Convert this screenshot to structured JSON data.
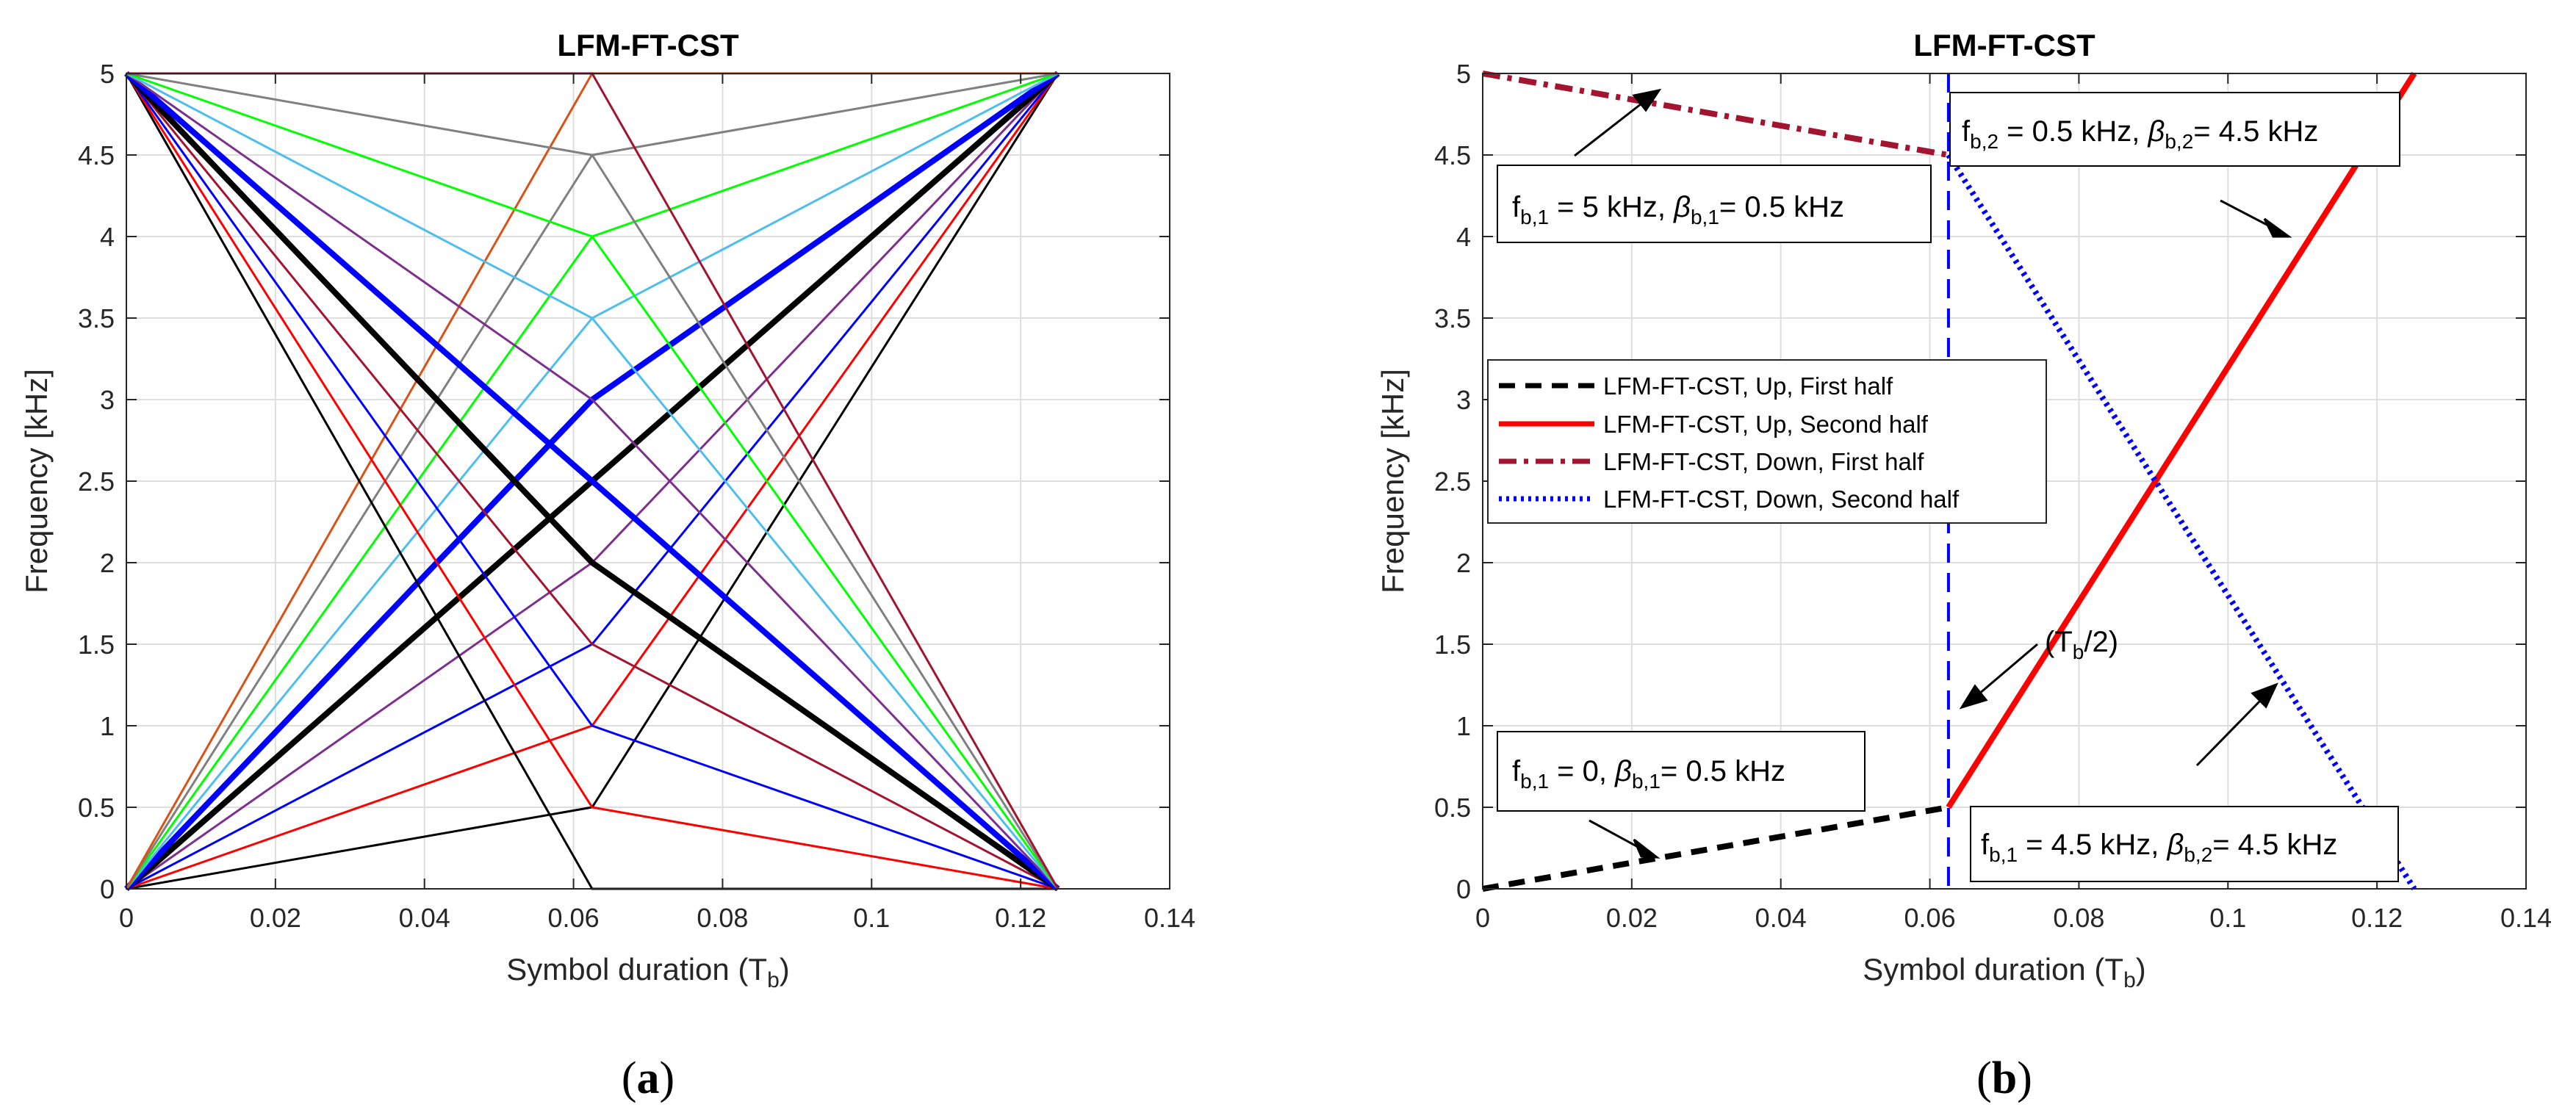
{
  "chart_data": [
    {
      "type": "line",
      "panel_label": "(a)",
      "title": "LFM-FT-CST",
      "xlabel": "Symbol duration (T",
      "xlabel_sub": "b",
      "xlabel_tail": ")",
      "ylabel": "Frequency [kHz]",
      "xlim": [
        0,
        0.14
      ],
      "ylim": [
        0,
        5
      ],
      "xticks": [
        0,
        0.02,
        0.04,
        0.06,
        0.08,
        0.1,
        0.12,
        0.14
      ],
      "xtick_labels": [
        "0",
        "0.02",
        "0.04",
        "0.06",
        "0.08",
        "0.1",
        "0.12",
        "0.14"
      ],
      "yticks": [
        0,
        0.5,
        1,
        1.5,
        2,
        2.5,
        3,
        3.5,
        4,
        4.5,
        5
      ],
      "ytick_labels": [
        "0",
        "0.5",
        "1",
        "1.5",
        "2",
        "2.5",
        "3",
        "3.5",
        "4",
        "4.5",
        "5"
      ],
      "grid": true,
      "series": [
        {
          "color": "#000000",
          "width": 1,
          "x": [
            0,
            0.0625,
            0.125
          ],
          "y": [
            0,
            0.5,
            5
          ]
        },
        {
          "color": "#ff0000",
          "width": 1,
          "x": [
            0,
            0.0625,
            0.125
          ],
          "y": [
            0,
            1,
            5
          ]
        },
        {
          "color": "#0000ff",
          "width": 1,
          "x": [
            0,
            0.0625,
            0.125
          ],
          "y": [
            0,
            1.5,
            5
          ]
        },
        {
          "color": "#7e2f8e",
          "width": 1,
          "x": [
            0,
            0.0625,
            0.125
          ],
          "y": [
            0,
            2,
            5
          ]
        },
        {
          "color": "#000000",
          "width": 3,
          "x": [
            0,
            0.0625,
            0.125
          ],
          "y": [
            0,
            2.5,
            5
          ]
        },
        {
          "color": "#0000ff",
          "width": 3,
          "x": [
            0,
            0.0625,
            0.125
          ],
          "y": [
            0,
            3,
            5
          ]
        },
        {
          "color": "#4dbeee",
          "width": 1,
          "x": [
            0,
            0.0625,
            0.125
          ],
          "y": [
            0,
            3.5,
            5
          ]
        },
        {
          "color": "#00ff00",
          "width": 1,
          "x": [
            0,
            0.0625,
            0.125
          ],
          "y": [
            0,
            4,
            5
          ]
        },
        {
          "color": "#808080",
          "width": 1,
          "x": [
            0,
            0.0625,
            0.125
          ],
          "y": [
            0,
            4.5,
            5
          ]
        },
        {
          "color": "#d95319",
          "width": 1,
          "x": [
            0,
            0.0625,
            0.125
          ],
          "y": [
            0,
            5,
            5
          ]
        },
        {
          "color": "#000000",
          "width": 1,
          "x": [
            0,
            0.0625,
            0.125
          ],
          "y": [
            5,
            0,
            0
          ]
        },
        {
          "color": "#ff0000",
          "width": 1,
          "x": [
            0,
            0.0625,
            0.125
          ],
          "y": [
            5,
            0.5,
            0
          ]
        },
        {
          "color": "#0000ff",
          "width": 1,
          "x": [
            0,
            0.0625,
            0.125
          ],
          "y": [
            5,
            1,
            0
          ]
        },
        {
          "color": "#a2142f",
          "width": 1,
          "x": [
            0,
            0.0625,
            0.125
          ],
          "y": [
            5,
            1.5,
            0
          ]
        },
        {
          "color": "#000000",
          "width": 3,
          "x": [
            0,
            0.0625,
            0.125
          ],
          "y": [
            5,
            2,
            0
          ]
        },
        {
          "color": "#0000ff",
          "width": 3,
          "x": [
            0,
            0.0625,
            0.125
          ],
          "y": [
            5,
            2.5,
            0
          ]
        },
        {
          "color": "#7e2f8e",
          "width": 1,
          "x": [
            0,
            0.0625,
            0.125
          ],
          "y": [
            5,
            3,
            0
          ]
        },
        {
          "color": "#4dbeee",
          "width": 1,
          "x": [
            0,
            0.0625,
            0.125
          ],
          "y": [
            5,
            3.5,
            0
          ]
        },
        {
          "color": "#00ff00",
          "width": 1,
          "x": [
            0,
            0.0625,
            0.125
          ],
          "y": [
            5,
            4,
            0
          ]
        },
        {
          "color": "#808080",
          "width": 1,
          "x": [
            0,
            0.0625,
            0.125
          ],
          "y": [
            5,
            4.5,
            0
          ]
        },
        {
          "color": "#a2142f",
          "width": 1,
          "x": [
            0,
            0.0625,
            0.125
          ],
          "y": [
            5,
            5,
            0
          ]
        }
      ]
    },
    {
      "type": "line",
      "panel_label": "(b)",
      "title": "LFM-FT-CST",
      "xlabel": "Symbol duration (T",
      "xlabel_sub": "b",
      "xlabel_tail": ")",
      "ylabel": "Frequency [kHz]",
      "xlim": [
        0,
        0.14
      ],
      "ylim": [
        0,
        5
      ],
      "xticks": [
        0,
        0.02,
        0.04,
        0.06,
        0.08,
        0.1,
        0.12,
        0.14
      ],
      "xtick_labels": [
        "0",
        "0.02",
        "0.04",
        "0.06",
        "0.08",
        "0.1",
        "0.12",
        "0.14"
      ],
      "yticks": [
        0,
        0.5,
        1,
        1.5,
        2,
        2.5,
        3,
        3.5,
        4,
        4.5,
        5
      ],
      "ytick_labels": [
        "0",
        "0.5",
        "1",
        "1.5",
        "2",
        "2.5",
        "3",
        "3.5",
        "4",
        "4.5",
        "5"
      ],
      "grid": true,
      "legend_position": "middle-left",
      "series": [
        {
          "name": "LFM-FT-CST, Up, First half",
          "color": "#000000",
          "style": "dashed",
          "width": 3,
          "x": [
            0,
            0.0625
          ],
          "y": [
            0,
            0.5
          ]
        },
        {
          "name": "LFM-FT-CST, Up, Second half",
          "color": "#ff0000",
          "style": "solid",
          "width": 3,
          "x": [
            0.0625,
            0.125
          ],
          "y": [
            0.5,
            5
          ]
        },
        {
          "name": "LFM-FT-CST, Down, First half",
          "color": "#a2142f",
          "style": "dashdot",
          "width": 3,
          "x": [
            0,
            0.0625
          ],
          "y": [
            5,
            4.5
          ]
        },
        {
          "name": "LFM-FT-CST, Down, Second half",
          "color": "#0000ff",
          "style": "dotted",
          "width": 3,
          "x": [
            0.0625,
            0.125
          ],
          "y": [
            4.5,
            0
          ]
        }
      ],
      "vline": {
        "x": 0.0625,
        "color": "#0000ff",
        "style": "dashed"
      },
      "annotations": {
        "top_left": {
          "parts": [
            "f",
            "b,1",
            " = 5 kHz, ",
            "β",
            "b,1",
            "= 0.5 kHz"
          ]
        },
        "top_right": {
          "parts": [
            "f",
            "b,2",
            " = 0.5 kHz, ",
            "β",
            "b,2",
            "= 4.5 kHz"
          ]
        },
        "bottom_left": {
          "parts": [
            "f",
            "b,1",
            " = 0, ",
            "β",
            "b,1",
            "= 0.5 kHz"
          ]
        },
        "bottom_right": {
          "parts": [
            "f",
            "b,1",
            " = 4.5 kHz, ",
            "β",
            "b,2",
            "= 4.5 kHz"
          ]
        },
        "mid": {
          "parts": [
            "(T",
            "b",
            "/2)"
          ]
        }
      }
    }
  ]
}
